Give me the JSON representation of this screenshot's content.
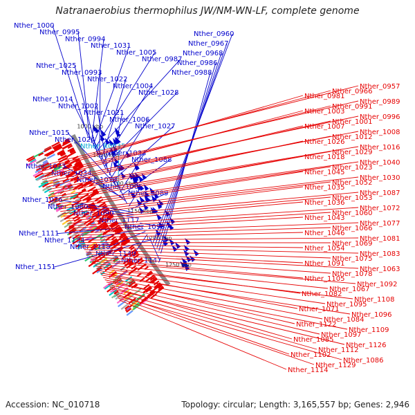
{
  "title": "Natranaerobius thermophilus JW/NM-WN-LF, complete genome",
  "accession": "Accession: NC_010718",
  "topology": "Topology: circular; Length: 3,165,557 bp; Genes: 2,946",
  "kbp_ticks": [
    "1000 kbp",
    "1050 kbp",
    "1100 kbp",
    "1150 kbp",
    "1200 kbp",
    "1250 kbp"
  ],
  "colors": {
    "blue": "#0000cc",
    "red": "#e60000",
    "cyan": "#00a6d6",
    "backbone": "#8a8a8a"
  },
  "left_labels": [
    {
      "text": "Nther_1000",
      "color": "blue"
    },
    {
      "text": "Nther_0995",
      "color": "blue"
    },
    {
      "text": "Nther_0994",
      "color": "blue"
    },
    {
      "text": "Nther_1031",
      "color": "blue"
    },
    {
      "text": "Nther_1005",
      "color": "blue"
    },
    {
      "text": "Nther_0987",
      "color": "blue"
    },
    {
      "text": "Nther_1025",
      "color": "blue"
    },
    {
      "text": "Nther_0993",
      "color": "blue"
    },
    {
      "text": "Nther_1022",
      "color": "blue"
    },
    {
      "text": "Nther_1004",
      "color": "blue"
    },
    {
      "text": "Nther_1028",
      "color": "blue"
    },
    {
      "text": "Nther_1014",
      "color": "blue"
    },
    {
      "text": "Nther_1002",
      "color": "blue"
    },
    {
      "text": "Nther_1021",
      "color": "blue"
    },
    {
      "text": "Nther_1006",
      "color": "blue"
    },
    {
      "text": "Nther_1027",
      "color": "blue"
    },
    {
      "text": "Nther_1015",
      "color": "blue"
    },
    {
      "text": "Nther_1024",
      "color": "blue"
    },
    {
      "text": "Nther_R0035",
      "color": "cyan"
    },
    {
      "text": "Nther_1033",
      "color": "blue"
    },
    {
      "text": "Nther_1088",
      "color": "blue"
    },
    {
      "text": "Nther_1073",
      "color": "blue"
    },
    {
      "text": "Nther_1034",
      "color": "blue"
    },
    {
      "text": "Nther_1079",
      "color": "blue"
    },
    {
      "text": "Nther_1065",
      "color": "blue"
    },
    {
      "text": "Nther_1089",
      "color": "blue"
    },
    {
      "text": "Nther_1076",
      "color": "blue"
    },
    {
      "text": "Nther_1080",
      "color": "blue"
    },
    {
      "text": "Nther_1090",
      "color": "blue"
    },
    {
      "text": "Nther_1117",
      "color": "blue"
    },
    {
      "text": "Nther_1098",
      "color": "blue"
    },
    {
      "text": "Nther_1111",
      "color": "blue"
    },
    {
      "text": "Nther_1134",
      "color": "blue"
    },
    {
      "text": "Nther_1118",
      "color": "blue"
    },
    {
      "text": "Nther_1140",
      "color": "blue"
    },
    {
      "text": "Nther_1147",
      "color": "blue"
    },
    {
      "text": "Nther_1151",
      "color": "blue"
    },
    {
      "text": "Nther_0960",
      "color": "blue"
    },
    {
      "text": "Nther_0967",
      "color": "blue"
    },
    {
      "text": "Nther_0968",
      "color": "blue"
    },
    {
      "text": "Nther_0986",
      "color": "blue"
    },
    {
      "text": "Nther_0988",
      "color": "blue"
    }
  ],
  "right_labels": [
    {
      "text": "Nther_0957"
    },
    {
      "text": "Nther_0966"
    },
    {
      "text": "Nther_0981"
    },
    {
      "text": "Nther_0989"
    },
    {
      "text": "Nther_0991"
    },
    {
      "text": "Nther_1003"
    },
    {
      "text": "Nther_0996"
    },
    {
      "text": "Nther_1001"
    },
    {
      "text": "Nther_1007"
    },
    {
      "text": "Nther_1008"
    },
    {
      "text": "Nther_1012"
    },
    {
      "text": "Nther_1026"
    },
    {
      "text": "Nther_1016"
    },
    {
      "text": "Nther_1029"
    },
    {
      "text": "Nther_1018"
    },
    {
      "text": "Nther_1040"
    },
    {
      "text": "Nther_1023"
    },
    {
      "text": "Nther_1045"
    },
    {
      "text": "Nther_1030"
    },
    {
      "text": "Nther_1052"
    },
    {
      "text": "Nther_1035"
    },
    {
      "text": "Nther_1087"
    },
    {
      "text": "Nther_1053"
    },
    {
      "text": "Nther_1036"
    },
    {
      "text": "Nther_1072"
    },
    {
      "text": "Nther_1060"
    },
    {
      "text": "Nther_1043"
    },
    {
      "text": "Nther_1077"
    },
    {
      "text": "Nther_1066"
    },
    {
      "text": "Nther_1046"
    },
    {
      "text": "Nther_1081"
    },
    {
      "text": "Nther_1069"
    },
    {
      "text": "Nther_1054"
    },
    {
      "text": "Nther_1083"
    },
    {
      "text": "Nther_1075"
    },
    {
      "text": "Nther_1091"
    },
    {
      "text": "Nther_1063"
    },
    {
      "text": "Nther_1078"
    },
    {
      "text": "Nther_1105"
    },
    {
      "text": "Nther_1092"
    },
    {
      "text": "Nther_1067"
    },
    {
      "text": "Nther_1082"
    },
    {
      "text": "Nther_1108"
    },
    {
      "text": "Nther_1095"
    },
    {
      "text": "Nther_1071"
    },
    {
      "text": "Nther_1096"
    },
    {
      "text": "Nther_1084"
    },
    {
      "text": "Nther_1122"
    },
    {
      "text": "Nther_1109"
    },
    {
      "text": "Nther_1097"
    },
    {
      "text": "Nther_1085"
    },
    {
      "text": "Nther_1126"
    },
    {
      "text": "Nther_1112"
    },
    {
      "text": "Nther_1102"
    },
    {
      "text": "Nther_1086"
    },
    {
      "text": "Nther_1129"
    },
    {
      "text": "Nther_1114"
    }
  ]
}
